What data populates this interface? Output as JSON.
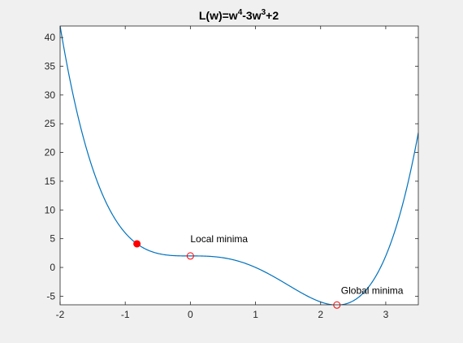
{
  "chart_data": {
    "type": "line",
    "title": "L(w)=w⁴-3w³+2",
    "title_parts": [
      {
        "text": "L(w)=w",
        "sup": false
      },
      {
        "text": "4",
        "sup": true
      },
      {
        "text": "-3w",
        "sup": false
      },
      {
        "text": "3",
        "sup": true
      },
      {
        "text": "+2",
        "sup": false
      }
    ],
    "xlabel": "",
    "ylabel": "",
    "xlim": [
      -2,
      3.5
    ],
    "ylim": [
      -6.5,
      42
    ],
    "xticks": [
      -2,
      -1,
      0,
      1,
      2,
      3
    ],
    "yticks": [
      -5,
      0,
      5,
      10,
      15,
      20,
      25,
      30,
      35,
      40
    ],
    "grid": false,
    "function": {
      "a4": 1,
      "a3": -3,
      "a0": 2
    },
    "curve_color": "#0072bd",
    "marker_color": "#ff0000",
    "highlight_point": {
      "x": -0.82,
      "y": 4.11
    },
    "annotations": [
      {
        "label": "Local minima",
        "x": 0,
        "y": 2
      },
      {
        "label": "Global minima",
        "x": 2.25,
        "y": -6.54
      }
    ]
  }
}
